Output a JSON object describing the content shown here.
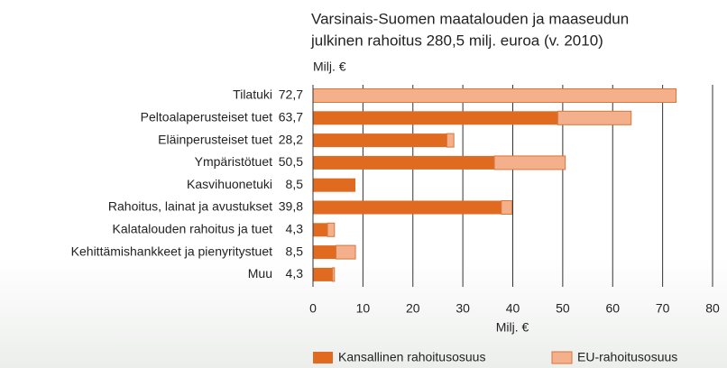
{
  "chart_data": {
    "type": "stacked-barh",
    "title": [
      "Varsinais-Suomen maatalouden ja maaseudun",
      "julkinen rahoitus 280,5 milj. euroa (v. 2010)"
    ],
    "unit_label": "Milj. €",
    "xlabel": "Milj. €",
    "categories": [
      "Tilatuki",
      "Peltoalaperusteiset tuet",
      "Eläinperusteiset tuet",
      "Ympäristötuet",
      "Kasvihuonetuki",
      "Rahoitus, lainat ja avustukset",
      "Kalatalouden rahoitus ja tuet",
      "Kehittämishankkeet ja pienyritystuet",
      "Muu"
    ],
    "totals": {
      "values": [
        72.7,
        63.7,
        28.2,
        50.5,
        8.5,
        39.8,
        4.3,
        8.5,
        4.3
      ],
      "value_labels": [
        "72,7",
        "63,7",
        "28,2",
        "50,5",
        "8,5",
        "39,8",
        "4,3",
        "8,5",
        "4,3"
      ]
    },
    "series": [
      {
        "name": "Kansallinen rahoitusosuus",
        "color": "#e06a1f",
        "values": [
          0,
          49,
          26.8,
          36.3,
          8.5,
          37.7,
          2.9,
          4.6,
          3.9
        ]
      },
      {
        "name": "EU-rahoitusosuus",
        "color": "#f4b08a",
        "values": [
          72.7,
          14.7,
          1.4,
          14.2,
          0,
          2.1,
          1.4,
          3.9,
          0.4
        ]
      }
    ],
    "xlim": [
      0,
      80
    ],
    "xticks": [
      0,
      10,
      20,
      30,
      40,
      50,
      60,
      70,
      80
    ],
    "grid": true
  }
}
